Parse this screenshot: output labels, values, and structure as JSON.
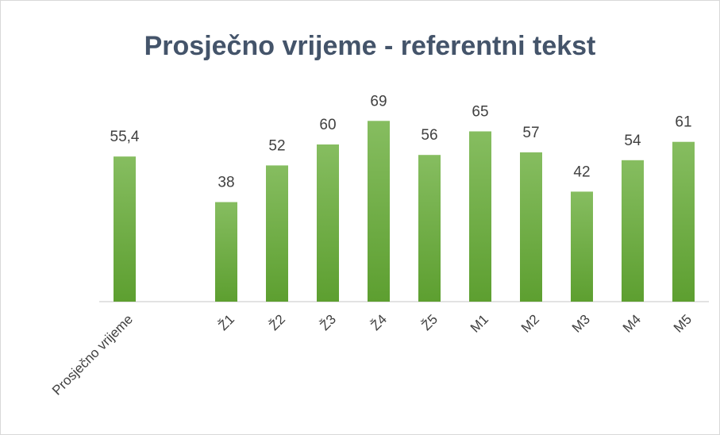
{
  "chart_data": {
    "type": "bar",
    "title": "Prosječno vrijeme - referentni tekst",
    "categories": [
      "Prosječno vrijeme",
      null,
      "Ž1",
      "Ž2",
      "Ž3",
      "Ž4",
      "Ž5",
      "M1",
      "M2",
      "M3",
      "M4",
      "M5"
    ],
    "values": [
      55.4,
      null,
      38,
      52,
      60,
      69,
      56,
      65,
      57,
      42,
      54,
      61
    ],
    "value_labels": [
      "55,4",
      null,
      "38",
      "52",
      "60",
      "69",
      "56",
      "65",
      "57",
      "42",
      "54",
      "61"
    ],
    "color": "#70ad47",
    "ylim": [
      0,
      80
    ]
  }
}
